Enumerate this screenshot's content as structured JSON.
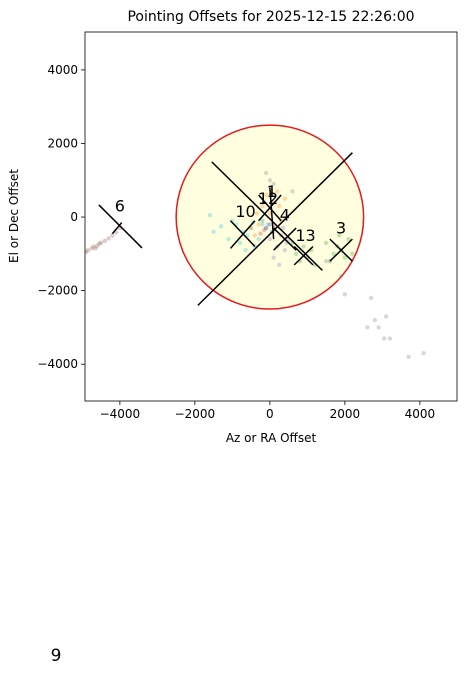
{
  "chart_data": {
    "type": "scatter",
    "title": "Pointing Offsets for 2025-12-15 22:26:00",
    "xlabel": "Az or RA Offset",
    "ylabel": "El or Dec Offset",
    "xlim": [
      -4930,
      4990
    ],
    "ylim": [
      -5000,
      5030
    ],
    "xticks": [
      {
        "value": -4000,
        "label": "−4000"
      },
      {
        "value": -2000,
        "label": "−2000"
      },
      0,
      2000,
      4000
    ],
    "yticks": [
      {
        "value": -4000,
        "label": "−4000"
      },
      {
        "value": -2000,
        "label": "−2000"
      },
      0,
      2000,
      4000
    ],
    "circle": {
      "x": 0,
      "y": 0,
      "r": 2500,
      "color": "#e41a1c",
      "fill": "#ffffe0"
    },
    "series": [
      {
        "color": "#7f7f7f",
        "x": [
          -100,
          0,
          100,
          600,
          1500,
          1900,
          2000,
          2700,
          2800,
          2900,
          3100,
          3200,
          3700,
          4100,
          2600,
          3050
        ],
        "y": [
          1200,
          1000,
          900,
          700,
          -1200,
          -1600,
          -2100,
          -2200,
          -2800,
          -3000,
          -2700,
          -3300,
          -3800,
          -3700,
          -3000,
          -3300
        ]
      },
      {
        "color": "#8c564b",
        "x": [
          -4900,
          -4850,
          -4750,
          -4700,
          -4600,
          -4500,
          -4400,
          -4300,
          -4200,
          -4100,
          -4000,
          -4650,
          -4550
        ],
        "y": [
          -950,
          -900,
          -850,
          -800,
          -780,
          -700,
          -650,
          -580,
          -500,
          -420,
          -300,
          -850,
          -720
        ]
      },
      {
        "color": "#17becf",
        "x": [
          -1600,
          -1500,
          -1300,
          -1100,
          -900,
          -800,
          -700,
          -600,
          -500,
          -400,
          -300,
          -200,
          -1000,
          -650,
          -450
        ],
        "y": [
          50,
          -400,
          -250,
          -600,
          -200,
          -700,
          -400,
          -500,
          -300,
          -800,
          -600,
          -200,
          -100,
          -900,
          -150
        ]
      },
      {
        "color": "#ff7f0e",
        "x": [
          -500,
          -400,
          -300,
          -200,
          -100,
          0,
          100,
          200,
          300,
          400,
          -350,
          250
        ],
        "y": [
          -300,
          -500,
          -200,
          300,
          600,
          100,
          400,
          700,
          -100,
          500,
          100,
          300
        ]
      },
      {
        "color": "#9467bd",
        "x": [
          -100,
          0,
          100,
          200,
          300,
          400,
          500,
          100,
          250,
          350,
          450,
          -50
        ],
        "y": [
          -300,
          -600,
          -400,
          -800,
          -500,
          -900,
          -600,
          -1100,
          -1300,
          -300,
          -700,
          -200
        ]
      },
      {
        "color": "#2ca02c",
        "x": [
          600,
          700,
          800,
          900,
          1000,
          1100,
          1200,
          1500,
          1700,
          1800,
          1900,
          2000,
          2100,
          2200,
          1600,
          1850
        ],
        "y": [
          -700,
          -1000,
          -1200,
          -800,
          -1100,
          -900,
          -1300,
          -700,
          -1000,
          -800,
          -900,
          -1100,
          -600,
          -1000,
          -1200,
          -500
        ]
      },
      {
        "color": "#1f77b4",
        "x": [
          -200,
          -100,
          0,
          50
        ],
        "y": [
          -100,
          -300,
          -200,
          -400
        ]
      },
      {
        "color": "#d62728",
        "x": [
          -250,
          -150,
          150
        ],
        "y": [
          -450,
          -350,
          -250
        ]
      }
    ],
    "segments": [
      [
        -1550,
        1500,
        1400,
        -1450
      ],
      [
        -1920,
        -2400,
        2200,
        1750
      ],
      [
        -4560,
        330,
        -3410,
        -840
      ],
      [
        -4200,
        -450,
        -3950,
        -150
      ],
      [
        -1050,
        -850,
        -400,
        -100
      ],
      [
        -1050,
        -100,
        -400,
        -800
      ],
      [
        -300,
        600,
        300,
        -100
      ],
      [
        -300,
        -100,
        300,
        600
      ],
      [
        0,
        800,
        100,
        -600
      ],
      [
        100,
        -300,
        700,
        -900
      ],
      [
        100,
        -900,
        700,
        -300
      ],
      [
        650,
        -800,
        1150,
        -1300
      ],
      [
        650,
        -1300,
        1150,
        -800
      ],
      [
        1600,
        -600,
        2200,
        -1200
      ],
      [
        1600,
        -1200,
        2200,
        -600
      ]
    ],
    "labels": [
      {
        "text": "6",
        "x": -4000,
        "y": 150
      },
      {
        "text": "10",
        "x": -650,
        "y": 0
      },
      {
        "text": "12",
        "x": -50,
        "y": 350
      },
      {
        "text": "1",
        "x": 50,
        "y": 550
      },
      {
        "text": "4",
        "x": 400,
        "y": -100
      },
      {
        "text": "13",
        "x": 950,
        "y": -650
      },
      {
        "text": "3",
        "x": 1900,
        "y": -450
      }
    ]
  },
  "footer_text": "9"
}
